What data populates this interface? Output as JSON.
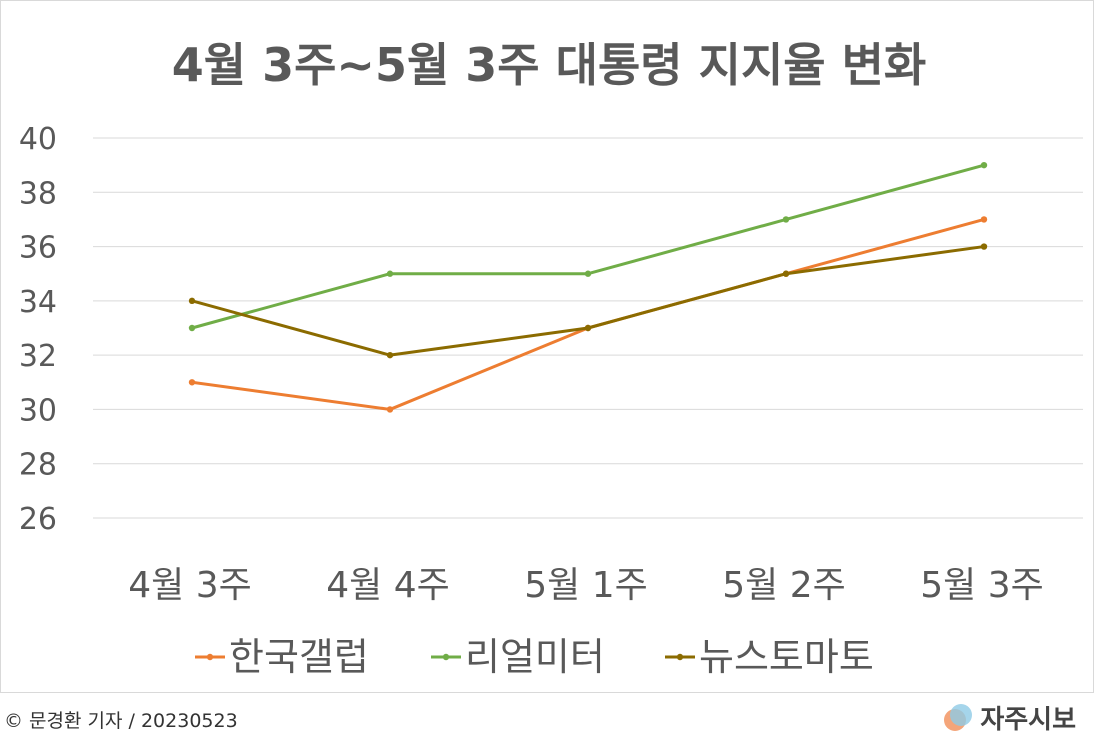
{
  "chart_data": {
    "type": "line",
    "title": "4월 3주~5월 3주 대통령 지지율 변화",
    "categories": [
      "4월 3주",
      "4월 4주",
      "5월 1주",
      "5월 2주",
      "5월 3주"
    ],
    "yticks": [
      26,
      28,
      30,
      32,
      34,
      36,
      38,
      40
    ],
    "ylim": [
      26,
      40
    ],
    "grid": true,
    "legend_position": "bottom",
    "series": [
      {
        "name": "한국갤럽",
        "color": "#ed7d31",
        "values": [
          31,
          30,
          33,
          35,
          37
        ]
      },
      {
        "name": "리얼미터",
        "color": "#70ad47",
        "values": [
          33,
          35,
          35,
          37,
          39
        ]
      },
      {
        "name": "뉴스토마토",
        "color": "#8b6b00",
        "values": [
          34,
          32,
          33,
          35,
          36
        ]
      }
    ]
  },
  "footer": {
    "credit": "© 문경환 기자 / 20230523",
    "logo_text": "자주시보",
    "logo_colors": [
      "#f4a57a",
      "#8fcbe6"
    ]
  }
}
